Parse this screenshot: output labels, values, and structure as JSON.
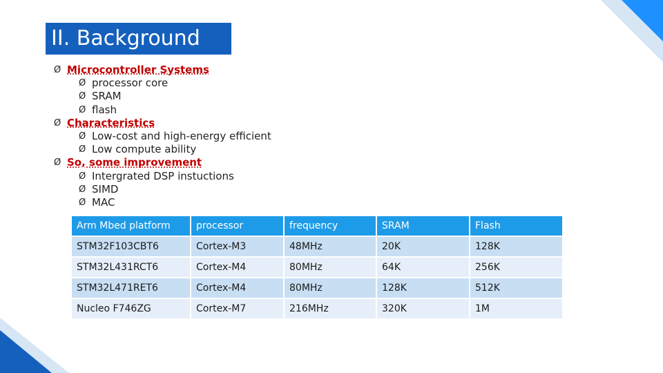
{
  "slide": {
    "title": "II. Background",
    "colors": {
      "title_bg": "#1560bd",
      "header_row": "#1e9be8",
      "row_dark": "#c8def3",
      "row_light": "#e6eff9",
      "bullet_heading": "#c00000"
    }
  },
  "bullet_glyph": "Ø",
  "sections": [
    {
      "heading": "Microcontroller Systems",
      "items": [
        "processor core",
        "SRAM",
        "flash"
      ]
    },
    {
      "heading": "Characteristics",
      "items": [
        "Low-cost and high-energy efficient",
        "Low compute ability"
      ]
    },
    {
      "heading": "So, some improvement",
      "items": [
        "Intergrated DSP instuctions",
        "SIMD",
        "MAC"
      ]
    }
  ],
  "table": {
    "headers": [
      "Arm Mbed platform",
      "processor",
      "frequency",
      "SRAM",
      "Flash"
    ],
    "rows": [
      [
        "STM32F103CBT6",
        "Cortex-M3",
        "48MHz",
        "20K",
        "128K"
      ],
      [
        "STM32L431RCT6",
        "Cortex-M4",
        "80MHz",
        "64K",
        "256K"
      ],
      [
        "STM32L471RET6",
        "Cortex-M4",
        "80MHz",
        "128K",
        "512K"
      ],
      [
        "Nucleo F746ZG",
        "Cortex-M7",
        "216MHz",
        "320K",
        "1M"
      ]
    ]
  }
}
